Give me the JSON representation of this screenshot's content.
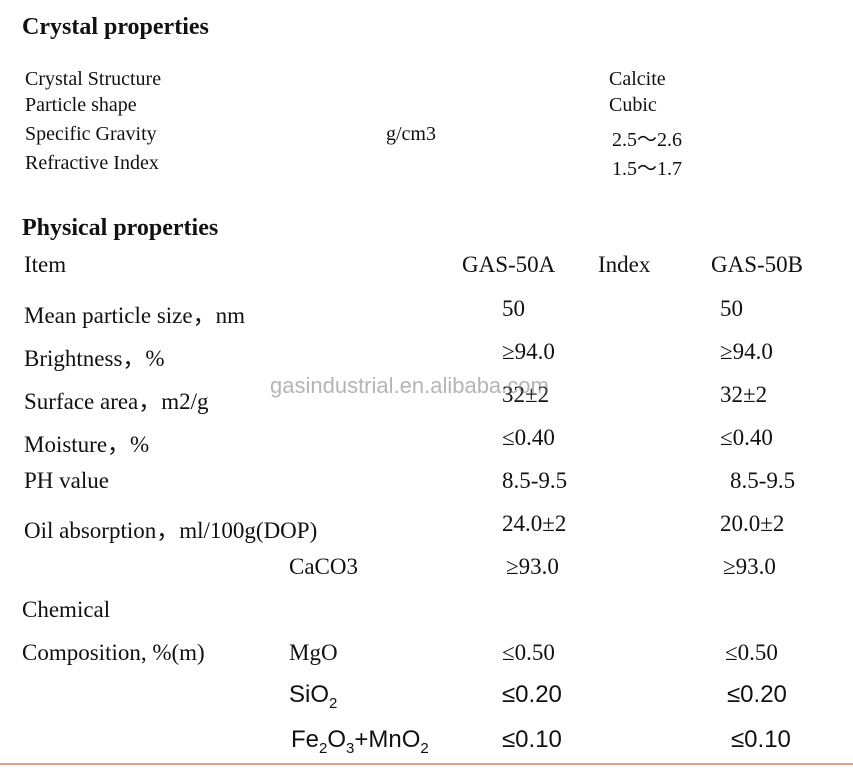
{
  "crystal": {
    "title": "Crystal properties",
    "rows": [
      {
        "label": "Crystal Structure",
        "unit": "",
        "value": "Calcite"
      },
      {
        "label": "Particle shape",
        "unit": "",
        "value": "Cubic"
      },
      {
        "label": "Specific Gravity",
        "unit": "g/cm3",
        "value": "2.5～2.6"
      },
      {
        "label": "Refractive Index",
        "unit": "",
        "value": "1.5～1.7"
      }
    ]
  },
  "physical": {
    "title": "Physical properties",
    "header": {
      "item": "Item",
      "col_a": "GAS-50A",
      "index": "Index",
      "col_b": "GAS-50B"
    },
    "rows": [
      {
        "label": "Mean particle size，nm",
        "a": "50",
        "b": "50"
      },
      {
        "label": "Brightness，%",
        "a": "≥94.0",
        "b": "≥94.0"
      },
      {
        "label": "Surface area，m2/g",
        "a": "32±2",
        "b": "32±2"
      },
      {
        "label": "Moisture，%",
        "a": "≤0.40",
        "b": "≤0.40"
      },
      {
        "label": "PH value",
        "a": "8.5-9.5",
        "b": "8.5-9.5"
      },
      {
        "label": "Oil absorption，ml/100g(DOP)",
        "a": "24.0±2",
        "b": "20.0±2"
      }
    ]
  },
  "chemical": {
    "label_line1": "Chemical",
    "label_line2": "Composition, %(m)",
    "rows": [
      {
        "component": "CaCO3",
        "a": "≥93.0",
        "b": "≥93.0"
      },
      {
        "component": "MgO",
        "a": "≤0.50",
        "b": "≤0.50"
      },
      {
        "component_main": "SiO",
        "component_sub": "2",
        "a": "≤0.20",
        "b": "≤0.20"
      },
      {
        "fe": "Fe",
        "fe_sub": "2",
        "o": "O",
        "o_sub": "3",
        "plus": "+MnO",
        "mn_sub": "2",
        "a": "≤0.10",
        "b": "≤0.10"
      }
    ]
  },
  "watermark": "gasindustrial.en.alibaba.com"
}
